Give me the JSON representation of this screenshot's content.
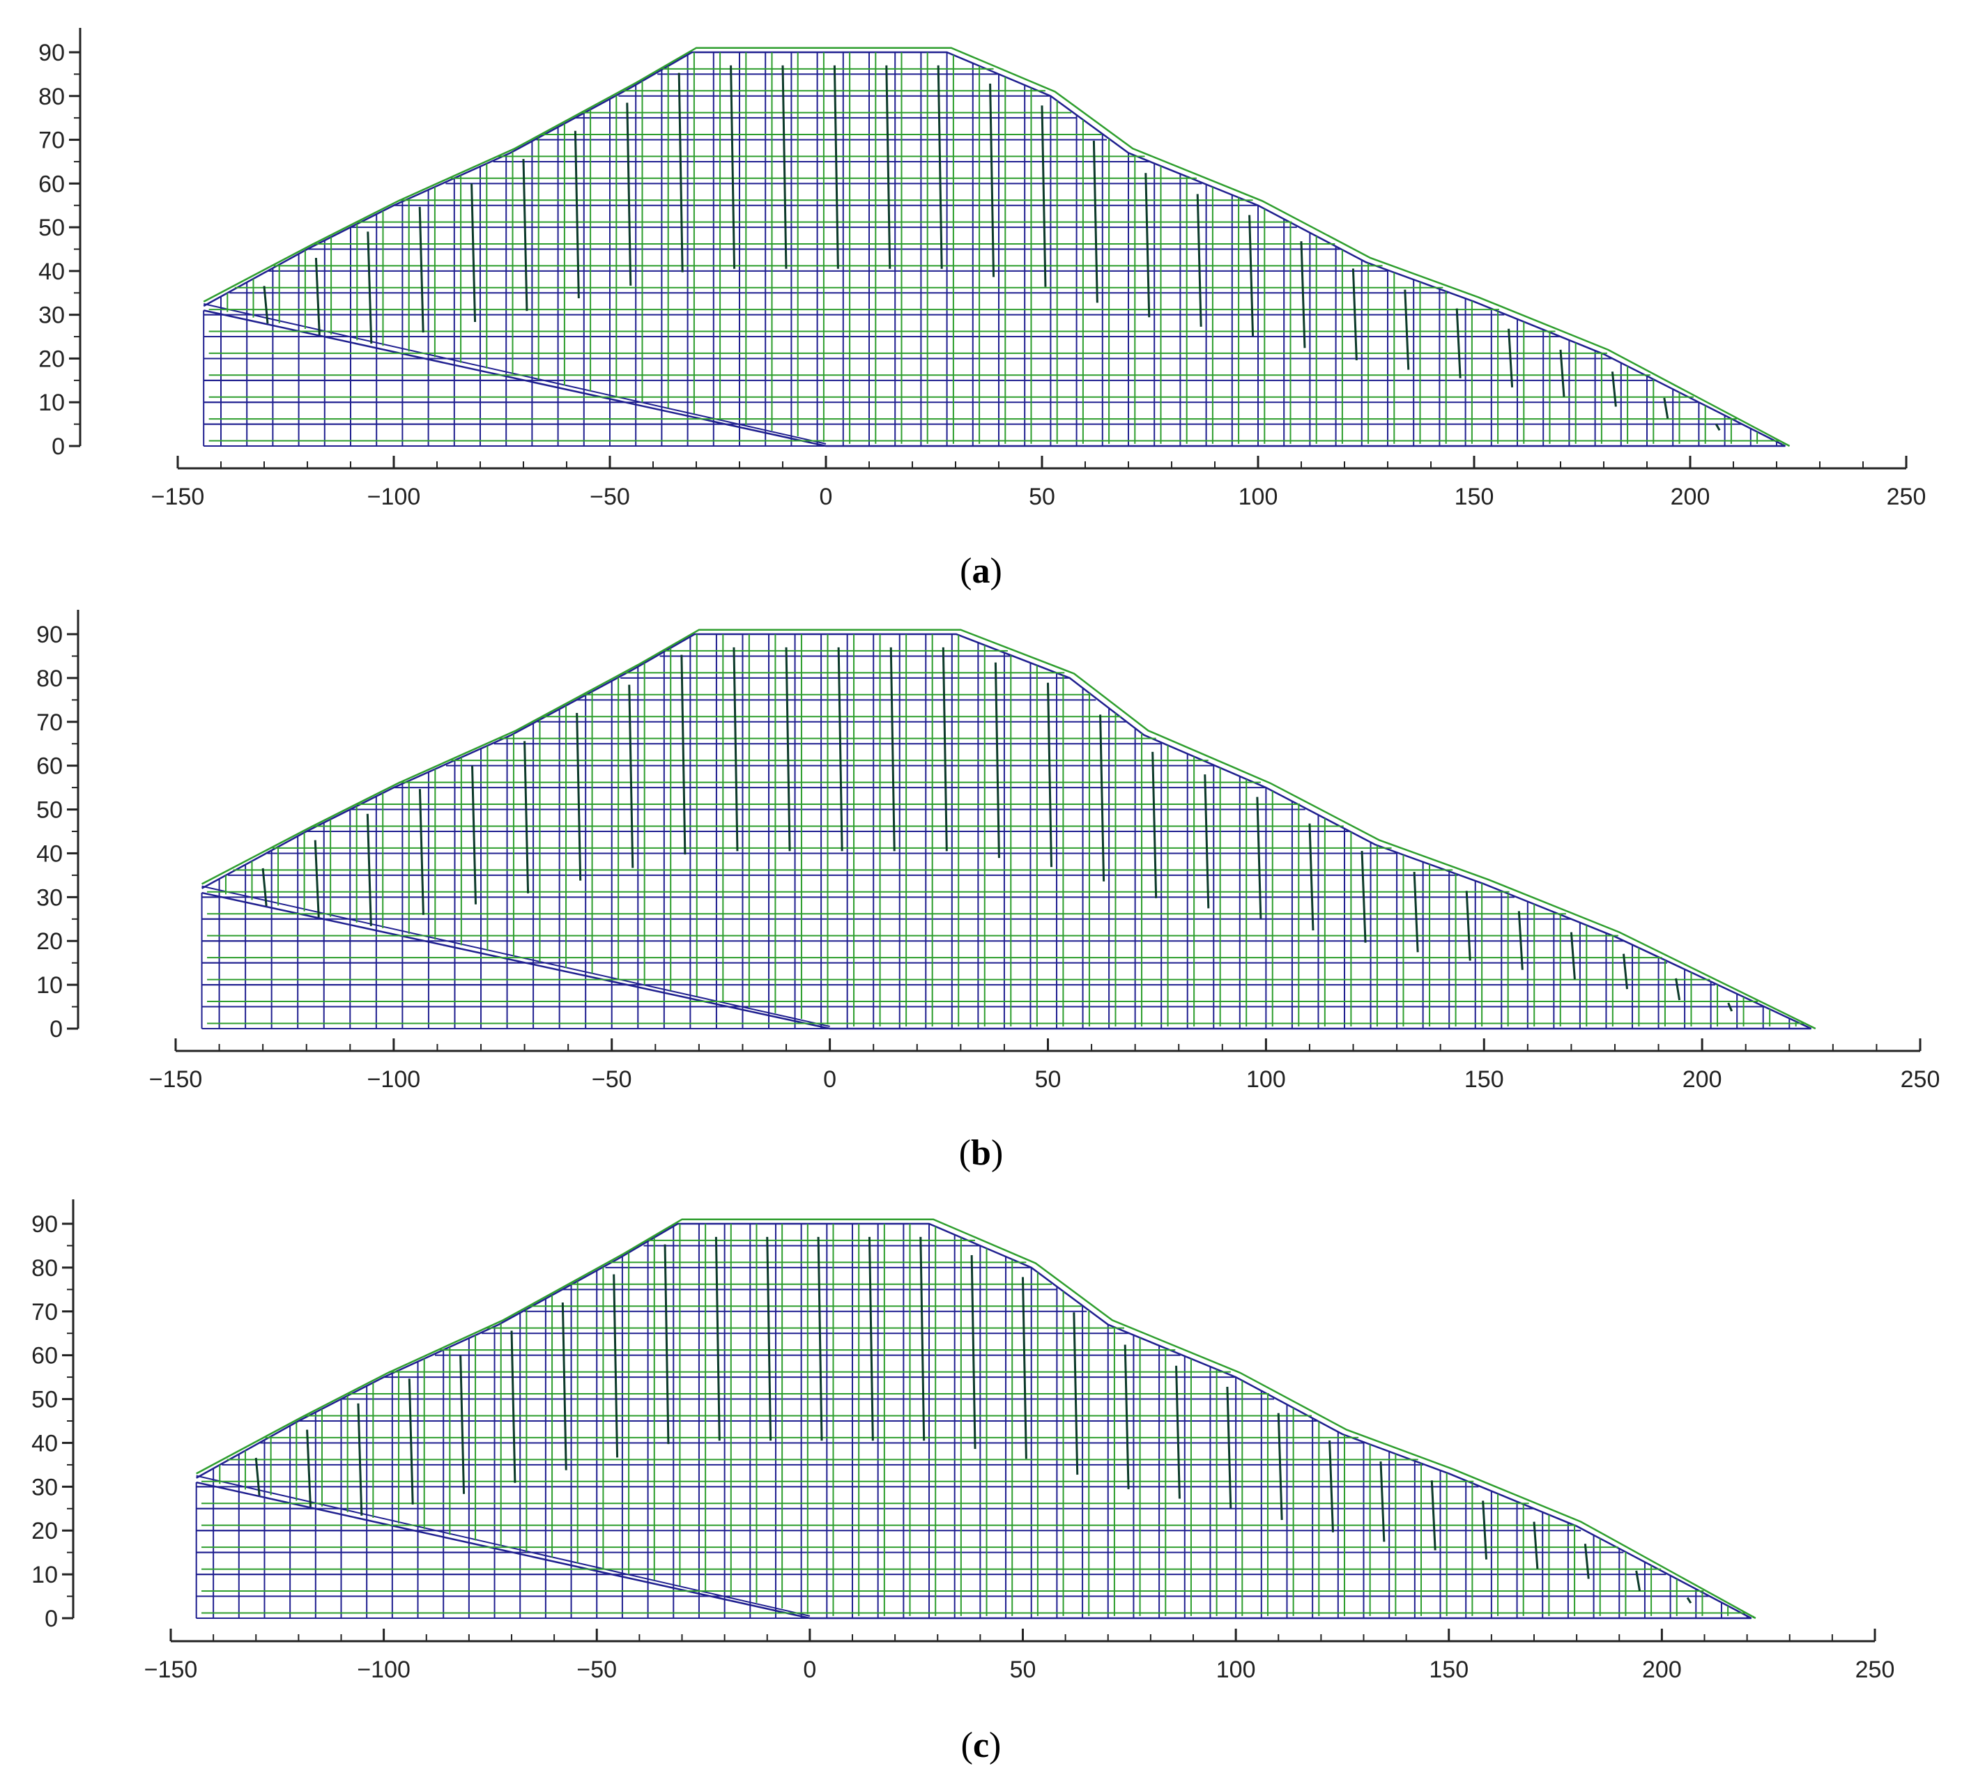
{
  "chart_data": [
    {
      "type": "mesh",
      "panel_label": "a",
      "xlim": [
        -150,
        250
      ],
      "ylim": [
        0,
        90
      ],
      "x_ticks": [
        -150,
        -100,
        -50,
        0,
        50,
        100,
        150,
        200,
        250
      ],
      "y_ticks": [
        0,
        10,
        20,
        30,
        40,
        50,
        60,
        70,
        80,
        90
      ],
      "grid": false,
      "colors": {
        "original_mesh": "#1f1f8f",
        "deformed_mesh": "#2e9e2e",
        "axis": "#222222",
        "displacement": "#0c3a2a"
      },
      "profile": {
        "x": [
          -144,
          -120,
          -100,
          -73,
          -45,
          -31,
          0,
          28,
          52,
          70,
          100,
          125,
          150,
          180,
          222
        ],
        "y": [
          32,
          45,
          55,
          67,
          82,
          90,
          90,
          90,
          80,
          67,
          55,
          42,
          33,
          21,
          0
        ]
      },
      "foundation": {
        "x_left": -144,
        "y_top": 31,
        "x_toe": 0
      }
    },
    {
      "type": "mesh",
      "panel_label": "b",
      "xlim": [
        -150,
        250
      ],
      "ylim": [
        0,
        90
      ],
      "x_ticks": [
        -150,
        -100,
        -50,
        0,
        50,
        100,
        150,
        200,
        250
      ],
      "y_ticks": [
        0,
        10,
        20,
        30,
        40,
        50,
        60,
        70,
        80,
        90
      ],
      "grid": false,
      "colors": {
        "original_mesh": "#1f1f8f",
        "deformed_mesh": "#2e9e2e",
        "axis": "#222222",
        "displacement": "#0c3a2a"
      },
      "profile": {
        "x": [
          -144,
          -120,
          -100,
          -73,
          -45,
          -31,
          0,
          29,
          55,
          72,
          100,
          125,
          150,
          180,
          225
        ],
        "y": [
          32,
          45,
          55,
          67,
          82,
          90,
          90,
          90,
          80,
          67,
          55,
          42,
          33,
          21,
          0
        ]
      },
      "foundation": {
        "x_left": -144,
        "y_top": 31,
        "x_toe": 0
      }
    },
    {
      "type": "mesh",
      "panel_label": "c",
      "xlim": [
        -150,
        250
      ],
      "ylim": [
        0,
        90
      ],
      "x_ticks": [
        -150,
        -100,
        -50,
        0,
        50,
        100,
        150,
        200,
        250
      ],
      "y_ticks": [
        0,
        10,
        20,
        30,
        40,
        50,
        60,
        70,
        80,
        90
      ],
      "grid": false,
      "colors": {
        "original_mesh": "#1f1f8f",
        "deformed_mesh": "#2e9e2e",
        "axis": "#222222",
        "displacement": "#0c3a2a"
      },
      "profile": {
        "x": [
          -144,
          -120,
          -100,
          -73,
          -45,
          -31,
          0,
          28,
          52,
          70,
          100,
          125,
          150,
          180,
          221
        ],
        "y": [
          32,
          45,
          55,
          67,
          82,
          90,
          90,
          90,
          80,
          67,
          55,
          42,
          33,
          21,
          0
        ]
      },
      "foundation": {
        "x_left": -144,
        "y_top": 31,
        "x_toe": 0
      }
    }
  ]
}
